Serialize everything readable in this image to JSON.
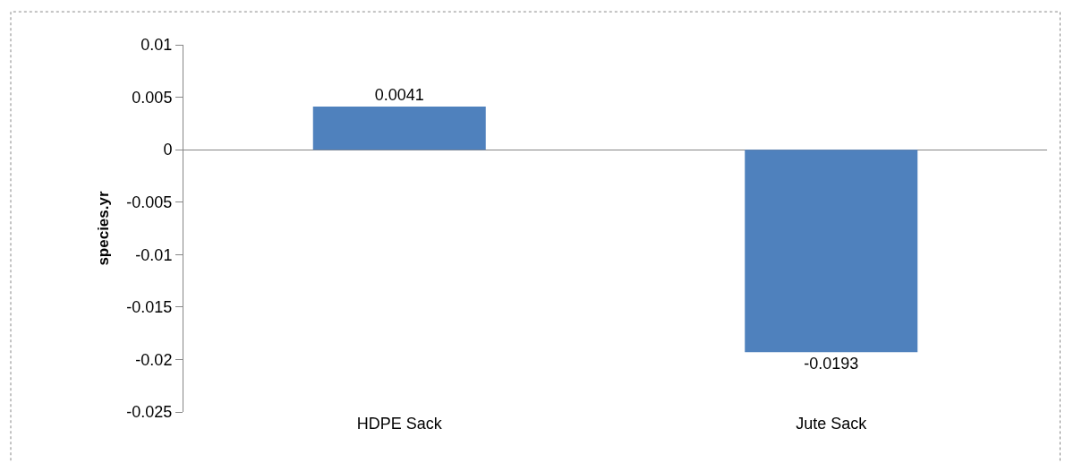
{
  "chart_data": {
    "type": "bar",
    "ylabel": "species.yr",
    "categories": [
      "HDPE Sack",
      "Jute Sack"
    ],
    "values": [
      0.0041,
      -0.0193
    ],
    "color": "#4f81bd",
    "ylim": [
      -0.025,
      0.01
    ],
    "yticks": [
      0.01,
      0.005,
      0,
      -0.005,
      -0.01,
      -0.015,
      -0.02,
      -0.025
    ],
    "data_labels": true,
    "legend": false
  }
}
